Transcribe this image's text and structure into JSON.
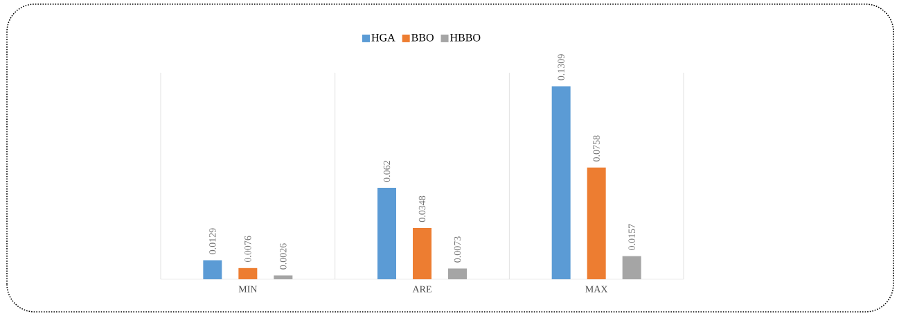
{
  "chart_data": {
    "type": "bar",
    "categories": [
      "MIN",
      "ARE",
      "MAX"
    ],
    "series": [
      {
        "name": "HGA",
        "color": "#5b9bd5",
        "values": [
          0.0129,
          0.062,
          0.1309
        ]
      },
      {
        "name": "BBO",
        "color": "#ed7d31",
        "values": [
          0.0076,
          0.0348,
          0.0758
        ]
      },
      {
        "name": "HBBO",
        "color": "#a5a5a5",
        "values": [
          0.0026,
          0.0073,
          0.0157
        ]
      }
    ],
    "data_labels": true,
    "legend": "top",
    "grid": "x"
  }
}
